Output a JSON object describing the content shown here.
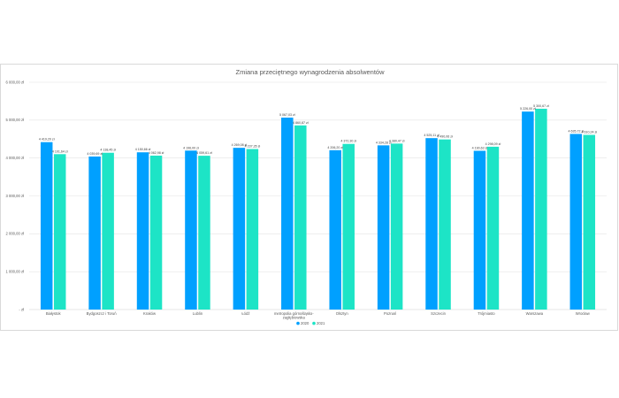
{
  "chart_data": {
    "type": "bar",
    "title": "Zmiana przeciętnego wynagrodzenia absolwentów",
    "categories": [
      [
        "Białystok"
      ],
      [
        "Bydgoszcz i Toruń"
      ],
      [
        "Kraków"
      ],
      [
        "Lublin"
      ],
      [
        "Łódź"
      ],
      [
        "metropolia górnośląsko-",
        "zagłębiowska"
      ],
      [
        "Olsztyn"
      ],
      [
        "Poznań"
      ],
      [
        "Szczecin"
      ],
      [
        "Trójmiasto"
      ],
      [
        "Warszawa"
      ],
      [
        "Wrocław"
      ]
    ],
    "series": [
      {
        "name": "2020",
        "color": "#00a0ff",
        "values": [
          4419.2,
          4039.69,
          4150.66,
          4196.0,
          4269.08,
          5067.03,
          4206.2,
          4334.28,
          4525.11,
          4190.63,
          5226.0,
          4635.72
        ],
        "labels": [
          "4 419,20 zł",
          "4 039,69 zł",
          "4 150,66 zł",
          "4 196,00 zł",
          "4 269,08 zł",
          "5 067,03 zł",
          "4 206,20 zł",
          "4 334,28 zł",
          "4 525,11 zł",
          "4 190,63 zł",
          "5 226,00 zł",
          "4 635,72 zł"
        ]
      },
      {
        "name": "2021",
        "color": "#1de4c6",
        "values": [
          4101.64,
          4138.45,
          4062.98,
          4059.61,
          4237.35,
          4860.87,
          4372.3,
          4380.47,
          4490.06,
          4298.09,
          5300.67,
          4610.24
        ],
        "labels": [
          "4 101,64 zł",
          "4 138,45 zł",
          "4 062,98 zł",
          "4 059,61 zł",
          "4 237,35 zł",
          "4 860,87 zł",
          "4 372,30 zł",
          "4 380,47 zł",
          "4 490,06 zł",
          "4 298,09 zł",
          "5 300,67 zł",
          "4 610,24 zł"
        ]
      }
    ],
    "ylim": [
      0,
      6000
    ],
    "yticks": [
      0,
      1000,
      2000,
      3000,
      4000,
      5000,
      6000
    ],
    "ytick_labels": [
      "- zł",
      "1 000,00 zł",
      "2 000,00 zł",
      "3 000,00 zł",
      "4 000,00 zł",
      "5 000,00 zł",
      "6 000,00 zł"
    ],
    "grid": true,
    "legend": "bottom"
  }
}
